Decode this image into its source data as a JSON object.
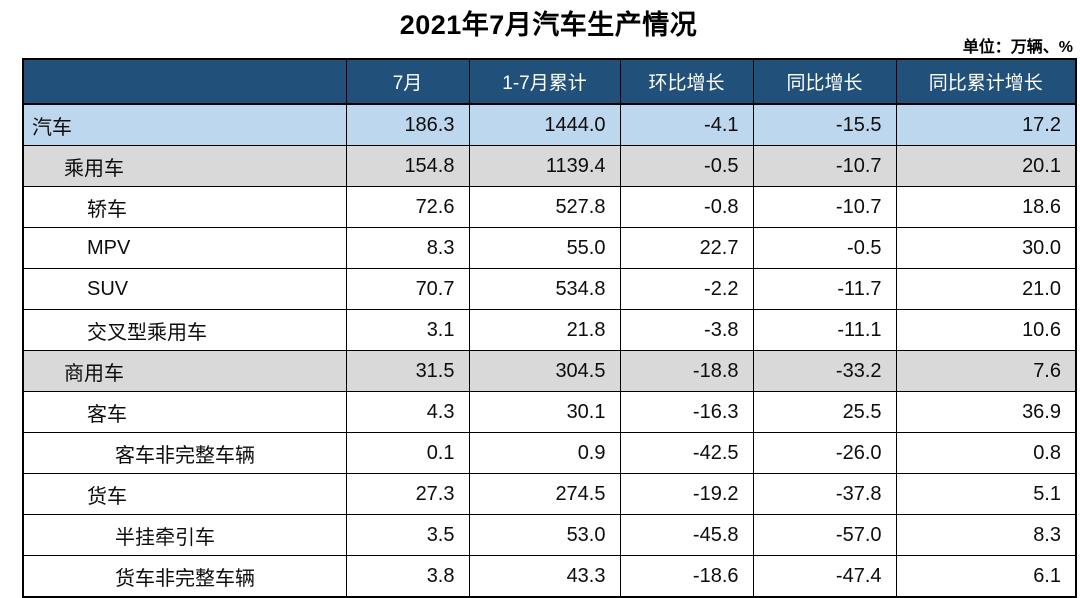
{
  "title": "2021年7月汽车生产情况",
  "unit_note": "单位：万辆、%",
  "colors": {
    "header_bg": "#21507A",
    "header_fg": "#FFFFFF",
    "row_highlight_blue": "#BDD7EE",
    "row_highlight_gray": "#D9D9D9",
    "border": "#000000"
  },
  "chart_data": {
    "type": "table",
    "title": "2021年7月汽车生产情况",
    "unit": "万辆、%",
    "columns": [
      "",
      "7月",
      "1-7月累计",
      "环比增长",
      "同比增长",
      "同比累计增长"
    ],
    "rows": [
      {
        "label": "汽车",
        "indent": 0,
        "highlight": "blue",
        "values": [
          "186.3",
          "1444.0",
          "-4.1",
          "-15.5",
          "17.2"
        ]
      },
      {
        "label": "乘用车",
        "indent": 1,
        "highlight": "gray",
        "values": [
          "154.8",
          "1139.4",
          "-0.5",
          "-10.7",
          "20.1"
        ]
      },
      {
        "label": "轿车",
        "indent": 2,
        "highlight": "none",
        "values": [
          "72.6",
          "527.8",
          "-0.8",
          "-10.7",
          "18.6"
        ]
      },
      {
        "label": "MPV",
        "indent": 2,
        "highlight": "none",
        "values": [
          "8.3",
          "55.0",
          "22.7",
          "-0.5",
          "30.0"
        ]
      },
      {
        "label": "SUV",
        "indent": 2,
        "highlight": "none",
        "values": [
          "70.7",
          "534.8",
          "-2.2",
          "-11.7",
          "21.0"
        ]
      },
      {
        "label": "交叉型乘用车",
        "indent": 2,
        "highlight": "none",
        "values": [
          "3.1",
          "21.8",
          "-3.8",
          "-11.1",
          "10.6"
        ]
      },
      {
        "label": "商用车",
        "indent": 1,
        "highlight": "gray",
        "values": [
          "31.5",
          "304.5",
          "-18.8",
          "-33.2",
          "7.6"
        ]
      },
      {
        "label": "客车",
        "indent": 2,
        "highlight": "none",
        "values": [
          "4.3",
          "30.1",
          "-16.3",
          "25.5",
          "36.9"
        ]
      },
      {
        "label": "客车非完整车辆",
        "indent": 3,
        "highlight": "none",
        "values": [
          "0.1",
          "0.9",
          "-42.5",
          "-26.0",
          "0.8"
        ]
      },
      {
        "label": "货车",
        "indent": 2,
        "highlight": "none",
        "values": [
          "27.3",
          "274.5",
          "-19.2",
          "-37.8",
          "5.1"
        ]
      },
      {
        "label": "半挂牵引车",
        "indent": 3,
        "highlight": "none",
        "values": [
          "3.5",
          "53.0",
          "-45.8",
          "-57.0",
          "8.3"
        ]
      },
      {
        "label": "货车非完整车辆",
        "indent": 3,
        "highlight": "none",
        "values": [
          "3.8",
          "43.3",
          "-18.6",
          "-47.4",
          "6.1"
        ]
      }
    ]
  }
}
